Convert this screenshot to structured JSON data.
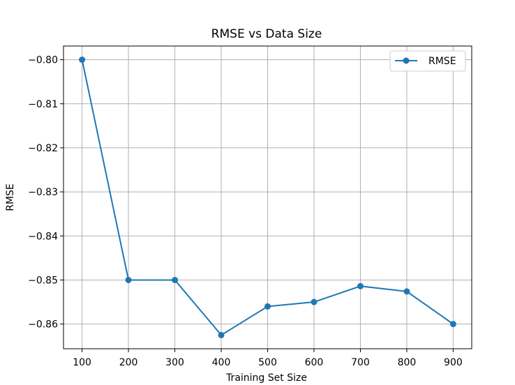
{
  "chart_data": {
    "type": "line",
    "title": "RMSE vs Data Size",
    "xlabel": "Training Set Size",
    "ylabel": "RMSE",
    "x": [
      100,
      200,
      300,
      400,
      500,
      600,
      700,
      800,
      900
    ],
    "series": [
      {
        "name": "RMSE",
        "values": [
          -0.8,
          -0.85,
          -0.85,
          -0.8625,
          -0.856,
          -0.855,
          -0.8514,
          -0.8526,
          -0.86
        ],
        "color": "#1f77b4",
        "marker": "circle"
      }
    ],
    "xticks": [
      100,
      200,
      300,
      400,
      500,
      600,
      700,
      800,
      900
    ],
    "xtick_labels": [
      "100",
      "200",
      "300",
      "400",
      "500",
      "600",
      "700",
      "800",
      "900"
    ],
    "yticks": [
      -0.8,
      -0.81,
      -0.82,
      -0.83,
      -0.84,
      -0.85,
      -0.86
    ],
    "ytick_labels": [
      "−0.80",
      "−0.81",
      "−0.82",
      "−0.83",
      "−0.84",
      "−0.85",
      "−0.86"
    ],
    "xlim": [
      60,
      940
    ],
    "ylim": [
      -0.8656,
      -0.7969
    ],
    "grid": true,
    "legend": {
      "position": "top-right",
      "entries": [
        "RMSE"
      ]
    }
  }
}
